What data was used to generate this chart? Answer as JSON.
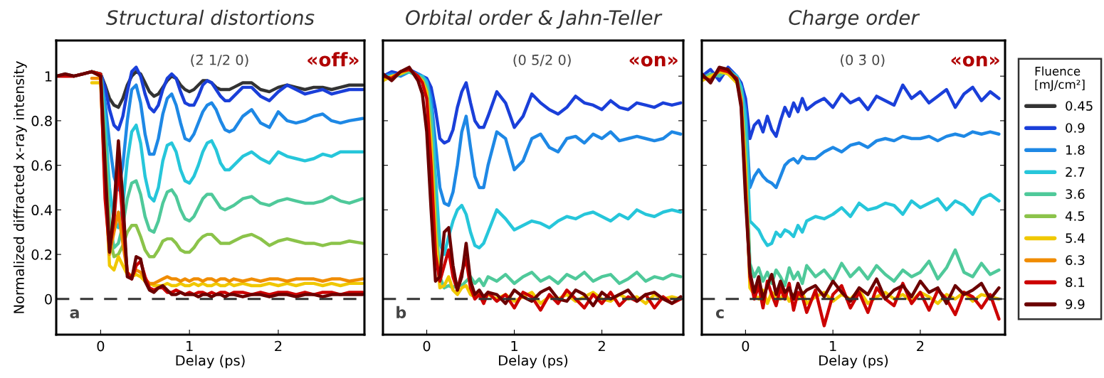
{
  "chart_data": [
    {
      "type": "line",
      "title": "Structural distortions",
      "xlabel": "Delay (ps)",
      "ylabel": "Normalized diffracted x-ray intensity",
      "legend_title": "Fluence\n[mJ/cm²]",
      "legend": "right",
      "annotations": [
        "(2̄ 1/2 0)",
        "«off»",
        "a"
      ],
      "xlim": [
        -0.5,
        2.97
      ],
      "ylim": [
        -0.16,
        1.16
      ],
      "xticks": [
        0,
        1,
        2
      ],
      "yticks": [
        0,
        0.2,
        0.4,
        0.6,
        0.8,
        1
      ],
      "ref_lines": [
        {
          "axis": "y",
          "value": 0,
          "color": "#333333",
          "line_style": "dashed"
        }
      ],
      "x": [
        -0.5,
        -0.4,
        -0.3,
        -0.2,
        -0.1,
        0,
        0.05,
        0.1,
        0.15,
        0.2,
        0.25,
        0.3,
        0.35,
        0.4,
        0.45,
        0.5,
        0.55,
        0.6,
        0.65,
        0.7,
        0.75,
        0.8,
        0.85,
        0.9,
        0.95,
        1.0,
        1.05,
        1.1,
        1.15,
        1.2,
        1.25,
        1.3,
        1.35,
        1.4,
        1.45,
        1.5,
        1.6,
        1.7,
        1.8,
        1.9,
        2.0,
        2.1,
        2.2,
        2.3,
        2.4,
        2.5,
        2.6,
        2.7,
        2.8,
        2.95
      ],
      "series": [
        {
          "name": "0.45",
          "color": "#333333",
          "values": [
            1.0,
            1.01,
            1.0,
            1.01,
            1.02,
            1.01,
            0.96,
            0.9,
            0.87,
            0.86,
            0.9,
            0.96,
            1.0,
            1.02,
            1.01,
            0.97,
            0.93,
            0.91,
            0.92,
            0.95,
            0.98,
            1.0,
            0.99,
            0.96,
            0.94,
            0.93,
            0.94,
            0.96,
            0.98,
            0.98,
            0.97,
            0.95,
            0.94,
            0.94,
            0.94,
            0.95,
            0.97,
            0.97,
            0.94,
            0.93,
            0.95,
            0.96,
            0.95,
            0.94,
            0.95,
            0.95,
            0.94,
            0.95,
            0.96,
            0.96
          ]
        },
        {
          "name": "0.9",
          "color": "#1a3fd9",
          "values": [
            null,
            null,
            null,
            null,
            1.02,
            1.01,
            0.95,
            0.85,
            0.78,
            0.76,
            0.82,
            0.93,
            1.02,
            1.04,
            1.0,
            0.92,
            0.86,
            0.84,
            0.87,
            0.94,
            0.99,
            1.01,
            0.99,
            0.93,
            0.88,
            0.87,
            0.87,
            0.91,
            0.96,
            0.98,
            0.97,
            0.94,
            0.91,
            0.89,
            0.89,
            0.91,
            0.95,
            0.95,
            0.91,
            0.89,
            0.93,
            0.96,
            0.94,
            0.92,
            0.93,
            0.94,
            0.92,
            0.93,
            0.94,
            0.94
          ]
        },
        {
          "name": "1.8",
          "color": "#1e88e5",
          "values": [
            null,
            null,
            null,
            null,
            1.02,
            1.01,
            0.88,
            0.7,
            0.55,
            0.49,
            0.6,
            0.8,
            0.94,
            0.96,
            0.88,
            0.74,
            0.65,
            0.65,
            0.72,
            0.83,
            0.9,
            0.92,
            0.87,
            0.79,
            0.72,
            0.71,
            0.74,
            0.79,
            0.84,
            0.87,
            0.88,
            0.85,
            0.8,
            0.76,
            0.75,
            0.76,
            0.82,
            0.85,
            0.79,
            0.77,
            0.84,
            0.8,
            0.79,
            0.8,
            0.82,
            0.83,
            0.8,
            0.79,
            0.8,
            0.81
          ]
        },
        {
          "name": "2.7",
          "color": "#26c6da",
          "values": [
            null,
            null,
            null,
            null,
            1.02,
            1.01,
            0.8,
            0.5,
            0.35,
            0.32,
            0.42,
            0.62,
            0.75,
            0.78,
            0.7,
            0.55,
            0.46,
            0.44,
            0.5,
            0.62,
            0.69,
            0.7,
            0.66,
            0.58,
            0.53,
            0.52,
            0.55,
            0.6,
            0.66,
            0.7,
            0.71,
            0.67,
            0.61,
            0.58,
            0.58,
            0.6,
            0.64,
            0.66,
            0.63,
            0.61,
            0.66,
            0.64,
            0.63,
            0.62,
            0.63,
            0.65,
            0.64,
            0.66,
            0.66,
            0.66
          ]
        },
        {
          "name": "3.6",
          "color": "#4fc99a",
          "values": [
            null,
            null,
            null,
            null,
            1.02,
            1.01,
            0.72,
            0.35,
            0.23,
            0.25,
            0.33,
            0.45,
            0.52,
            0.53,
            0.47,
            0.37,
            0.31,
            0.3,
            0.35,
            0.43,
            0.48,
            0.49,
            0.46,
            0.4,
            0.36,
            0.35,
            0.37,
            0.41,
            0.45,
            0.47,
            0.47,
            0.44,
            0.41,
            0.4,
            0.41,
            0.42,
            0.45,
            0.46,
            0.43,
            0.42,
            0.44,
            0.45,
            0.44,
            0.43,
            0.43,
            0.44,
            0.46,
            0.44,
            0.43,
            0.45
          ]
        },
        {
          "name": "4.5",
          "color": "#8bc34a",
          "values": [
            null,
            null,
            null,
            null,
            1.02,
            1.01,
            0.65,
            0.28,
            0.19,
            0.2,
            0.24,
            0.3,
            0.33,
            0.33,
            0.28,
            0.22,
            0.19,
            0.19,
            0.22,
            0.26,
            0.27,
            0.27,
            0.25,
            0.22,
            0.21,
            0.21,
            0.23,
            0.26,
            0.28,
            0.29,
            0.29,
            0.27,
            0.25,
            0.25,
            0.25,
            0.26,
            0.28,
            0.29,
            0.27,
            0.24,
            0.26,
            0.27,
            0.26,
            0.25,
            0.25,
            0.24,
            0.25,
            0.25,
            0.26,
            0.25
          ]
        },
        {
          "name": "5.4",
          "color": "#f0c800",
          "values": [
            null,
            null,
            null,
            null,
            0.97,
            0.97,
            0.55,
            0.15,
            0.13,
            0.19,
            0.15,
            0.11,
            0.1,
            0.11,
            0.1,
            0.08,
            0.07,
            0.06,
            0.06,
            0.06,
            0.07,
            0.06,
            0.06,
            0.07,
            0.06,
            0.06,
            0.07,
            0.06,
            0.07,
            0.06,
            0.06,
            0.07,
            0.06,
            0.06,
            0.07,
            0.06,
            0.07,
            0.06,
            0.06,
            0.07,
            0.06,
            0.07,
            0.06,
            0.07,
            0.07,
            0.06,
            0.07,
            0.06,
            0.07,
            0.07
          ]
        },
        {
          "name": "6.3",
          "color": "#f08c00",
          "values": [
            null,
            null,
            null,
            null,
            0.99,
            0.99,
            0.5,
            0.2,
            0.3,
            0.39,
            0.25,
            0.12,
            0.1,
            0.13,
            0.12,
            0.09,
            0.07,
            0.07,
            0.08,
            0.09,
            0.1,
            0.09,
            0.09,
            0.08,
            0.09,
            0.08,
            0.09,
            0.09,
            0.08,
            0.09,
            0.09,
            0.08,
            0.09,
            0.09,
            0.08,
            0.09,
            0.08,
            0.09,
            0.08,
            0.09,
            0.09,
            0.08,
            0.09,
            0.09,
            0.09,
            0.08,
            0.09,
            0.09,
            0.08,
            0.09
          ]
        },
        {
          "name": "8.1",
          "color": "#cc0000",
          "values": [
            1.0,
            1.0,
            1.0,
            1.01,
            1.02,
            1.01,
            0.45,
            0.22,
            0.35,
            0.6,
            0.35,
            0.12,
            0.09,
            0.15,
            0.17,
            0.1,
            0.05,
            0.04,
            0.05,
            0.05,
            0.03,
            0.03,
            0.04,
            0.03,
            0.02,
            0.03,
            0.02,
            0.03,
            0.03,
            0.02,
            0.03,
            0.02,
            0.03,
            0.03,
            0.02,
            0.03,
            0.03,
            0.02,
            0.03,
            0.02,
            0.03,
            0.03,
            0.02,
            0.03,
            0.02,
            0.03,
            0.03,
            0.02,
            0.03,
            0.03
          ]
        },
        {
          "name": "9.9",
          "color": "#6b0000",
          "values": [
            1.0,
            1.01,
            1.0,
            1.01,
            1.02,
            1.0,
            0.6,
            0.21,
            0.4,
            0.71,
            0.45,
            0.1,
            0.09,
            0.19,
            0.18,
            0.08,
            0.04,
            0.03,
            0.05,
            0.06,
            0.04,
            0.02,
            0.02,
            0.03,
            0.02,
            0.02,
            0.02,
            0.01,
            0.02,
            0.02,
            0.01,
            0.02,
            0.02,
            0.01,
            0.02,
            0.02,
            0.01,
            0.02,
            0.02,
            0.01,
            0.02,
            0.02,
            0.01,
            0.02,
            0.02,
            0.01,
            0.02,
            0.02,
            0.02,
            0.02
          ]
        }
      ]
    },
    {
      "type": "line",
      "title": "Orbital order & Jahn-Teller",
      "xlabel": "Delay (ps)",
      "tick_labels": "x",
      "annotations": [
        "(0 5̄/2 0)",
        "«on»",
        "b"
      ],
      "xlim": [
        -0.5,
        2.93
      ],
      "ylim": [
        -0.16,
        1.16
      ],
      "xticks": [
        0,
        1,
        2
      ],
      "yticks": [
        0,
        0.2,
        0.4,
        0.6,
        0.8,
        1
      ],
      "ref_lines": [
        {
          "axis": "y",
          "value": 0,
          "color": "#333333",
          "line_style": "dashed"
        }
      ],
      "x": [
        -0.5,
        -0.4,
        -0.3,
        -0.2,
        -0.1,
        -0.05,
        0,
        0.05,
        0.1,
        0.15,
        0.2,
        0.25,
        0.3,
        0.35,
        0.4,
        0.45,
        0.5,
        0.55,
        0.6,
        0.65,
        0.7,
        0.8,
        0.9,
        1.0,
        1.1,
        1.2,
        1.3,
        1.4,
        1.5,
        1.6,
        1.7,
        1.8,
        1.9,
        2.0,
        2.1,
        2.2,
        2.3,
        2.4,
        2.5,
        2.6,
        2.7,
        2.8,
        2.9
      ],
      "series": [
        {
          "name": "0.9",
          "color": "#1a3fd9",
          "values": [
            1.0,
            1.02,
            1.01,
            1.03,
            1.01,
            1.0,
            0.99,
            0.95,
            0.85,
            0.72,
            0.7,
            0.71,
            0.76,
            0.86,
            0.93,
            0.97,
            0.88,
            0.8,
            0.77,
            0.77,
            0.82,
            0.93,
            0.88,
            0.77,
            0.82,
            0.92,
            0.88,
            0.85,
            0.83,
            0.86,
            0.91,
            0.88,
            0.87,
            0.85,
            0.89,
            0.86,
            0.85,
            0.88,
            0.87,
            0.86,
            0.88,
            0.87,
            0.88
          ]
        },
        {
          "name": "1.8",
          "color": "#1e88e5",
          "values": [
            1.0,
            1.01,
            1.0,
            1.02,
            1.01,
            1.0,
            0.98,
            0.9,
            0.7,
            0.5,
            0.43,
            0.42,
            0.48,
            0.6,
            0.75,
            0.82,
            0.68,
            0.55,
            0.5,
            0.5,
            0.6,
            0.75,
            0.72,
            0.58,
            0.62,
            0.72,
            0.74,
            0.68,
            0.66,
            0.72,
            0.73,
            0.7,
            0.74,
            0.72,
            0.75,
            0.71,
            0.72,
            0.73,
            0.72,
            0.71,
            0.72,
            0.75,
            0.74
          ]
        },
        {
          "name": "2.7",
          "color": "#26c6da",
          "values": [
            1.0,
            1.0,
            1.01,
            1.02,
            1.0,
            1.0,
            0.97,
            0.85,
            0.55,
            0.25,
            0.2,
            0.28,
            0.35,
            0.4,
            0.42,
            0.38,
            0.3,
            0.24,
            0.23,
            0.25,
            0.3,
            0.4,
            0.36,
            0.31,
            0.33,
            0.35,
            0.34,
            0.32,
            0.35,
            0.37,
            0.36,
            0.38,
            0.39,
            0.37,
            0.35,
            0.38,
            0.36,
            0.4,
            0.38,
            0.37,
            0.39,
            0.4,
            0.39
          ]
        },
        {
          "name": "3.6",
          "color": "#4fc99a",
          "values": [
            1.0,
            0.99,
            1.01,
            1.02,
            1.0,
            0.99,
            0.95,
            0.8,
            0.4,
            0.1,
            0.05,
            0.06,
            0.05,
            0.07,
            0.06,
            0.08,
            0.1,
            0.07,
            0.09,
            0.06,
            0.1,
            0.08,
            0.11,
            0.07,
            0.1,
            0.12,
            0.08,
            0.1,
            0.07,
            0.11,
            0.09,
            0.12,
            0.08,
            0.1,
            0.11,
            0.07,
            0.09,
            0.12,
            0.08,
            0.1,
            0.09,
            0.11,
            0.1
          ]
        },
        {
          "name": "5.4",
          "color": "#f0c800",
          "values": [
            0.98,
            1.0,
            1.01,
            1.03,
            1.0,
            0.98,
            0.93,
            0.7,
            0.3,
            0.05,
            0.06,
            0.1,
            0.04,
            0.02,
            0.05,
            0.06,
            0.02,
            0.01,
            0.03,
            0.01,
            0.02,
            0.0,
            0.02,
            -0.01,
            0.01,
            0.03,
            -0.02,
            0.01,
            0.0,
            0.02,
            -0.01,
            0.01,
            0.03,
            0.0,
            -0.01,
            0.02,
            0.0,
            0.01,
            -0.02,
            0.02,
            0.0,
            0.01,
            0.0
          ]
        },
        {
          "name": "8.1",
          "color": "#cc0000",
          "values": [
            1.0,
            0.99,
            1.02,
            1.03,
            1.0,
            0.97,
            0.9,
            0.6,
            0.2,
            0.08,
            0.15,
            0.22,
            0.1,
            0.04,
            0.12,
            0.18,
            0.05,
            0.0,
            0.02,
            -0.02,
            0.03,
            -0.01,
            0.02,
            -0.04,
            0.03,
            0.01,
            -0.05,
            0.02,
            -0.02,
            0.04,
            0.0,
            -0.04,
            0.02,
            -0.02,
            0.03,
            -0.03,
            0.01,
            -0.01,
            0.02,
            -0.04,
            0.01,
            -0.02,
            0.0
          ]
        },
        {
          "name": "9.9",
          "color": "#6b0000",
          "values": [
            1.01,
            0.98,
            1.02,
            1.04,
            0.98,
            0.92,
            0.75,
            0.4,
            0.08,
            0.1,
            0.3,
            0.32,
            0.15,
            0.04,
            0.1,
            0.25,
            0.08,
            0.02,
            0.04,
            0.01,
            0.03,
            0.02,
            -0.02,
            0.04,
            0.01,
            -0.01,
            0.03,
            0.05,
            0.0,
            -0.01,
            0.04,
            0.02,
            -0.03,
            0.03,
            0.0,
            0.02,
            0.04,
            -0.01,
            0.02,
            0.03,
            0.0,
            -0.02,
            0.01
          ]
        }
      ]
    },
    {
      "type": "line",
      "title": "Charge order",
      "xlabel": "Delay (ps)",
      "tick_labels": "x",
      "annotations": [
        "(0 3̄ 0)",
        "«on»",
        "c"
      ],
      "xlim": [
        -0.5,
        2.97
      ],
      "ylim": [
        -0.16,
        1.16
      ],
      "xticks": [
        0,
        1,
        2
      ],
      "yticks": [
        0,
        0.2,
        0.4,
        0.6,
        0.8,
        1
      ],
      "ref_lines": [
        {
          "axis": "y",
          "value": 0,
          "color": "#333333",
          "line_style": "dashed"
        }
      ],
      "x": [
        -0.5,
        -0.4,
        -0.3,
        -0.2,
        -0.1,
        -0.05,
        0,
        0.05,
        0.1,
        0.15,
        0.2,
        0.25,
        0.3,
        0.35,
        0.4,
        0.45,
        0.5,
        0.55,
        0.6,
        0.65,
        0.7,
        0.8,
        0.9,
        1.0,
        1.1,
        1.2,
        1.3,
        1.4,
        1.5,
        1.6,
        1.7,
        1.8,
        1.9,
        2.0,
        2.1,
        2.2,
        2.3,
        2.4,
        2.5,
        2.6,
        2.7,
        2.8,
        2.9
      ],
      "series": [
        {
          "name": "0.9",
          "color": "#1a3fd9",
          "values": [
            1.0,
            1.03,
            0.98,
            1.04,
            1.0,
            0.97,
            0.9,
            0.72,
            0.78,
            0.8,
            0.75,
            0.82,
            0.76,
            0.73,
            0.8,
            0.86,
            0.82,
            0.88,
            0.84,
            0.9,
            0.85,
            0.88,
            0.9,
            0.86,
            0.92,
            0.88,
            0.9,
            0.85,
            0.91,
            0.89,
            0.87,
            0.96,
            0.9,
            0.93,
            0.88,
            0.91,
            0.94,
            0.86,
            0.92,
            0.95,
            0.89,
            0.93,
            0.9
          ]
        },
        {
          "name": "1.8",
          "color": "#1e88e5",
          "values": [
            1.0,
            1.0,
            1.02,
            1.03,
            1.0,
            0.95,
            0.85,
            0.5,
            0.55,
            0.58,
            0.55,
            0.53,
            0.52,
            0.5,
            0.55,
            0.6,
            0.62,
            0.63,
            0.61,
            0.64,
            0.63,
            0.63,
            0.66,
            0.68,
            0.66,
            0.69,
            0.7,
            0.68,
            0.71,
            0.72,
            0.71,
            0.73,
            0.72,
            0.72,
            0.73,
            0.71,
            0.73,
            0.74,
            0.73,
            0.75,
            0.74,
            0.75,
            0.74
          ]
        },
        {
          "name": "2.7",
          "color": "#26c6da",
          "values": [
            1.0,
            0.99,
            1.01,
            1.02,
            1.0,
            0.95,
            0.8,
            0.35,
            0.33,
            0.31,
            0.27,
            0.24,
            0.25,
            0.3,
            0.28,
            0.31,
            0.3,
            0.28,
            0.33,
            0.3,
            0.35,
            0.37,
            0.36,
            0.38,
            0.41,
            0.37,
            0.43,
            0.4,
            0.41,
            0.43,
            0.42,
            0.38,
            0.44,
            0.41,
            0.43,
            0.45,
            0.4,
            0.44,
            0.42,
            0.38,
            0.45,
            0.47,
            0.44
          ]
        },
        {
          "name": "3.6",
          "color": "#4fc99a",
          "values": [
            0.99,
            1.01,
            1.0,
            1.03,
            0.99,
            0.93,
            0.7,
            0.16,
            0.1,
            0.14,
            0.08,
            0.12,
            0.07,
            0.13,
            0.1,
            0.06,
            0.14,
            0.09,
            0.12,
            0.07,
            0.15,
            0.1,
            0.13,
            0.08,
            0.16,
            0.1,
            0.14,
            0.09,
            0.15,
            0.11,
            0.08,
            0.13,
            0.1,
            0.12,
            0.17,
            0.09,
            0.14,
            0.22,
            0.12,
            0.1,
            0.16,
            0.11,
            0.13
          ]
        },
        {
          "name": "5.4",
          "color": "#f0c800",
          "values": [
            0.98,
            1.0,
            1.02,
            1.01,
            0.97,
            0.9,
            0.6,
            0.05,
            0.02,
            0.0,
            0.04,
            -0.02,
            0.03,
            0.01,
            0.0,
            0.03,
            -0.01,
            0.02,
            0.0,
            0.03,
            -0.02,
            0.01,
            0.03,
            -0.01,
            0.02,
            0.0,
            0.04,
            -0.02,
            0.01,
            0.03,
            0.0,
            0.02,
            -0.01,
            0.03,
            0.01,
            -0.02,
            0.02,
            0.0,
            0.03,
            -0.01,
            0.02,
            0.01,
            0.0
          ]
        },
        {
          "name": "8.1",
          "color": "#cc0000",
          "values": [
            1.0,
            0.98,
            1.03,
            1.02,
            0.99,
            0.88,
            0.5,
            0.1,
            0.0,
            0.06,
            -0.04,
            0.08,
            0.02,
            -0.03,
            0.05,
            0.0,
            0.07,
            -0.05,
            0.03,
            0.01,
            -0.06,
            0.04,
            -0.12,
            0.02,
            0.06,
            -0.04,
            0.03,
            -0.06,
            0.05,
            0.0,
            -0.03,
            0.07,
            -0.02,
            0.03,
            -0.05,
            0.04,
            0.0,
            -0.07,
            0.03,
            0.01,
            -0.04,
            0.02,
            -0.09
          ]
        },
        {
          "name": "9.9",
          "color": "#6b0000",
          "values": [
            1.01,
            0.97,
            1.04,
            1.03,
            0.98,
            0.86,
            0.45,
            0.12,
            0.03,
            0.1,
            0.0,
            0.06,
            0.11,
            0.02,
            0.08,
            0.03,
            0.05,
            0.0,
            0.07,
            0.02,
            0.04,
            0.06,
            0.01,
            0.08,
            0.03,
            -0.01,
            0.05,
            0.02,
            0.09,
            0.0,
            0.04,
            0.06,
            0.01,
            0.08,
            0.03,
            0.05,
            -0.02,
            0.06,
            0.02,
            0.04,
            0.07,
            0.0,
            0.05
          ]
        }
      ]
    }
  ]
}
